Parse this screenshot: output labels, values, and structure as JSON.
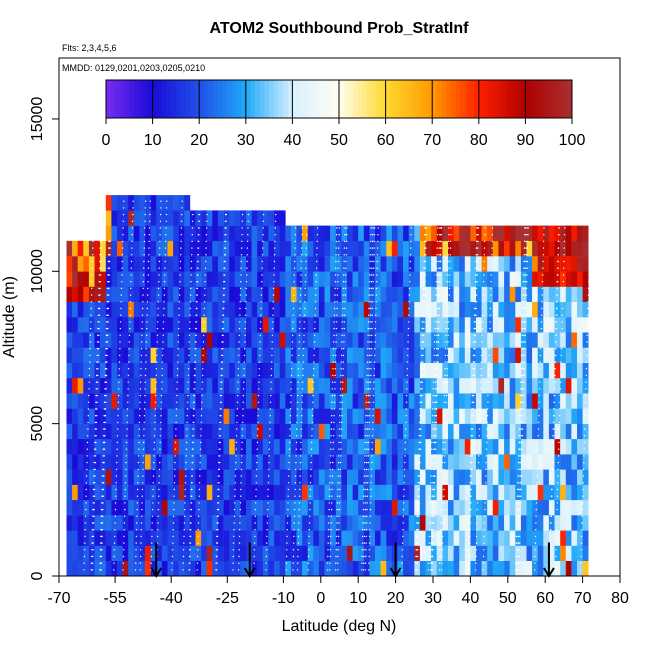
{
  "chart_data": {
    "type": "heatmap",
    "title": "ATOM2 Southbound Prob_StratInf",
    "subtitle_flights": "Flts: 2,3,4,5,6",
    "subtitle_dates": "MMDD: 0129,0201,0203,0205,0210",
    "xlabel": "Latitude (deg N)",
    "ylabel": "Altitude (m)",
    "xlim": [
      -70,
      80
    ],
    "ylim": [
      0,
      17000
    ],
    "x_tick_labels": [
      "-70",
      "-55",
      "-40",
      "-25",
      "-10",
      "0",
      "10",
      "20",
      "30",
      "40",
      "50",
      "60",
      "70",
      "80"
    ],
    "x_tick_values": [
      -70,
      -55,
      -40,
      -25,
      -10,
      0,
      10,
      20,
      30,
      40,
      50,
      60,
      70,
      80
    ],
    "y_tick_labels": [
      "0",
      "5000",
      "10000",
      "15000"
    ],
    "y_tick_values": [
      0,
      5000,
      10000,
      15000
    ],
    "colorbar": {
      "range": [
        0,
        100
      ],
      "tick_labels": [
        "0",
        "10",
        "20",
        "30",
        "40",
        "50",
        "60",
        "70",
        "80",
        "90",
        "100"
      ],
      "tick_values": [
        0,
        10,
        20,
        30,
        40,
        50,
        60,
        70,
        80,
        90,
        100
      ],
      "colors": [
        "#7a2cf0",
        "#1a0ad8",
        "#2050e8",
        "#20a8f8",
        "#d8f0ff",
        "#fffff0",
        "#ffd830",
        "#ff9a00",
        "#ff2000",
        "#b00000",
        "#a83030"
      ]
    },
    "data_extent": {
      "lat_min": -68,
      "lat_max": 71,
      "alt_min": 0,
      "alt_max": 12500
    },
    "arrow_latitudes": [
      -44,
      -19,
      20,
      61
    ],
    "grid": false,
    "legend": "colorbar-top",
    "colors": {
      "low": "#7a2cf0",
      "mid": "#20a8f8",
      "high": "#a83030",
      "arrow": "#000000",
      "track": "#ffffff"
    }
  }
}
